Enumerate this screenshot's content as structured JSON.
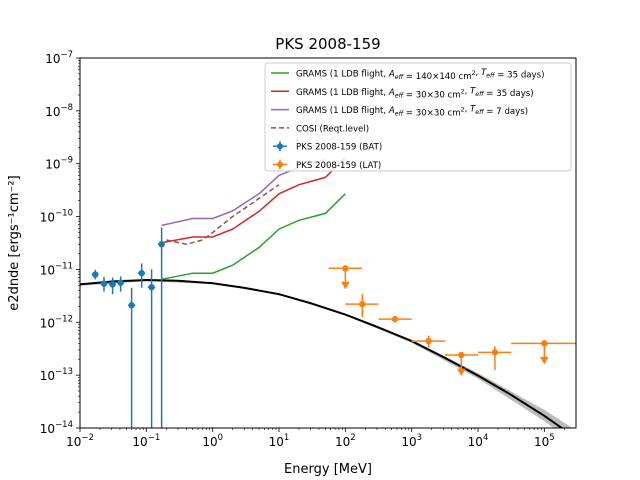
{
  "chart_data": {
    "type": "scatter",
    "title": "PKS 2008-159",
    "xlabel": "Energy [MeV]",
    "ylabel": "e2dnde [ergs⁻¹cm⁻²]",
    "xscale": "log",
    "yscale": "log",
    "xlim": [
      0.01,
      300000
    ],
    "ylim": [
      1e-14,
      1e-07
    ],
    "x_ticks": [
      {
        "v": 0.01,
        "base": "10",
        "exp": "−2"
      },
      {
        "v": 0.1,
        "base": "10",
        "exp": "−1"
      },
      {
        "v": 1,
        "base": "10",
        "exp": "0"
      },
      {
        "v": 10,
        "base": "10",
        "exp": "1"
      },
      {
        "v": 100,
        "base": "10",
        "exp": "2"
      },
      {
        "v": 1000,
        "base": "10",
        "exp": "3"
      },
      {
        "v": 10000,
        "base": "10",
        "exp": "4"
      },
      {
        "v": 100000,
        "base": "10",
        "exp": "5"
      }
    ],
    "y_ticks": [
      {
        "v": 1e-14,
        "base": "10",
        "exp": "−14"
      },
      {
        "v": 1e-13,
        "base": "10",
        "exp": "−13"
      },
      {
        "v": 1e-12,
        "base": "10",
        "exp": "−12"
      },
      {
        "v": 1e-11,
        "base": "10",
        "exp": "−11"
      },
      {
        "v": 1e-10,
        "base": "10",
        "exp": "−10"
      },
      {
        "v": 1e-09,
        "base": "10",
        "exp": "−9"
      },
      {
        "v": 1e-08,
        "base": "10",
        "exp": "−8"
      },
      {
        "v": 1e-07,
        "base": "10",
        "exp": "−7"
      }
    ],
    "grid": false,
    "legend_position": "top-right",
    "model": {
      "color": "#000000",
      "band_color": "#bbbbbb",
      "curve": [
        [
          0.01,
          5.2e-12
        ],
        [
          0.03,
          5.9e-12
        ],
        [
          0.1,
          6.3e-12
        ],
        [
          0.3,
          6.1e-12
        ],
        [
          1,
          5.5e-12
        ],
        [
          3,
          4.5e-12
        ],
        [
          10,
          3.4e-12
        ],
        [
          30,
          2.3e-12
        ],
        [
          100,
          1.4e-12
        ],
        [
          300,
          8.2e-13
        ],
        [
          1000,
          4.4e-13
        ],
        [
          3000,
          2.2e-13
        ],
        [
          10000,
          9.8e-14
        ],
        [
          30000,
          4.4e-14
        ],
        [
          100000,
          1.7e-14
        ],
        [
          300000,
          6.5e-15
        ]
      ],
      "band_upper": [
        [
          0.01,
          5.5e-12
        ],
        [
          0.1,
          6.6e-12
        ],
        [
          1,
          5.7e-12
        ],
        [
          10,
          3.5e-12
        ],
        [
          100,
          1.45e-12
        ],
        [
          1000,
          4.7e-13
        ],
        [
          10000,
          1.1e-13
        ],
        [
          100000,
          2.2e-14
        ],
        [
          300000,
          9e-15
        ]
      ],
      "band_lower": [
        [
          0.01,
          4.9e-12
        ],
        [
          0.1,
          6e-12
        ],
        [
          1,
          5.3e-12
        ],
        [
          10,
          3.3e-12
        ],
        [
          100,
          1.35e-12
        ],
        [
          1000,
          4.1e-13
        ],
        [
          10000,
          8.6e-14
        ],
        [
          100000,
          1.35e-14
        ],
        [
          300000,
          4.8e-15
        ]
      ]
    },
    "series": [
      {
        "name": "GRAMS (1 LDB flight, A_eff = 140×140 cm², T_eff = 35 days)",
        "legend_main": "GRAMS (1 LDB flight, ",
        "legend_parts": [
          {
            "t": "A"
          },
          {
            "t": "eff",
            "sub": true
          },
          {
            "t": " = 140×140 cm"
          },
          {
            "t": "2",
            "sup": true
          },
          {
            "t": ", "
          },
          {
            "t": "T"
          },
          {
            "t": "eff",
            "sub": true
          },
          {
            "t": " = 35 days)"
          }
        ],
        "style": "line",
        "color": "#2ca02c",
        "points": [
          [
            0.17,
            6.5e-12
          ],
          [
            0.5,
            8.5e-12
          ],
          [
            1,
            8.5e-12
          ],
          [
            2,
            1.2e-11
          ],
          [
            5,
            2.6e-11
          ],
          [
            10,
            5.8e-11
          ],
          [
            20,
            8.5e-11
          ],
          [
            50,
            1.15e-10
          ],
          [
            100,
            2.7e-10
          ]
        ]
      },
      {
        "name": "GRAMS (1 LDB flight, A_eff = 30×30 cm², T_eff = 35 days)",
        "legend_main": "GRAMS (1 LDB flight, ",
        "legend_parts": [
          {
            "t": "A"
          },
          {
            "t": "eff",
            "sub": true
          },
          {
            "t": " = 30×30 cm"
          },
          {
            "t": "2",
            "sup": true
          },
          {
            "t": ", "
          },
          {
            "t": "T"
          },
          {
            "t": "eff",
            "sub": true
          },
          {
            "t": " = 35 days)"
          }
        ],
        "style": "line",
        "color": "#d62728",
        "points": [
          [
            0.17,
            3.2e-11
          ],
          [
            0.5,
            4.1e-11
          ],
          [
            1,
            4.1e-11
          ],
          [
            2,
            5.8e-11
          ],
          [
            5,
            1.25e-10
          ],
          [
            10,
            2.7e-10
          ],
          [
            20,
            4e-10
          ],
          [
            50,
            5.5e-10
          ],
          [
            100,
            1.3e-09
          ]
        ]
      },
      {
        "name": "GRAMS (1 LDB flight, A_eff = 30×30 cm², T_eff = 7 days)",
        "legend_main": "GRAMS (1 LDB flight, ",
        "legend_parts": [
          {
            "t": "A"
          },
          {
            "t": "eff",
            "sub": true
          },
          {
            "t": " = 30×30 cm"
          },
          {
            "t": "2",
            "sup": true
          },
          {
            "t": ", "
          },
          {
            "t": "T"
          },
          {
            "t": "eff",
            "sub": true
          },
          {
            "t": " = 7 days)"
          }
        ],
        "style": "line",
        "color": "#9467bd",
        "points": [
          [
            0.17,
            6.8e-11
          ],
          [
            0.5,
            9.2e-11
          ],
          [
            1,
            9.2e-11
          ],
          [
            2,
            1.28e-10
          ],
          [
            5,
            2.7e-10
          ],
          [
            10,
            6e-10
          ],
          [
            20,
            8.5e-10
          ],
          [
            50,
            1.2e-09
          ]
        ]
      },
      {
        "name": "COSI (Reqt.level)",
        "legend_main": "COSI (Reqt.level)",
        "legend_parts": [],
        "style": "dashed",
        "color": "#8c564b",
        "points": [
          [
            0.2,
            3.6e-11
          ],
          [
            0.4,
            3e-11
          ],
          [
            0.7,
            3.6e-11
          ],
          [
            1,
            5e-11
          ],
          [
            2,
            1e-10
          ],
          [
            5,
            2.2e-10
          ],
          [
            10,
            4e-10
          ]
        ]
      },
      {
        "name": "PKS 2008-159 (BAT)",
        "legend_main": "PKS 2008-159 (BAT)",
        "legend_parts": [],
        "style": "errorbar",
        "color": "#1f77b4",
        "points": [
          {
            "x": 0.017,
            "xlo": 0.015,
            "xhi": 0.019,
            "y": 8e-12,
            "ylo": 6.5e-12,
            "yhi": 9.8e-12
          },
          {
            "x": 0.023,
            "xlo": 0.02,
            "xhi": 0.026,
            "y": 5.4e-12,
            "ylo": 3.8e-12,
            "yhi": 7.2e-12
          },
          {
            "x": 0.031,
            "xlo": 0.027,
            "xhi": 0.035,
            "y": 5.2e-12,
            "ylo": 3.4e-12,
            "yhi": 7e-12
          },
          {
            "x": 0.041,
            "xlo": 0.036,
            "xhi": 0.046,
            "y": 5.6e-12,
            "ylo": 3.8e-12,
            "yhi": 7.4e-12
          },
          {
            "x": 0.06,
            "xlo": 0.053,
            "xhi": 0.068,
            "y": 2.1e-12,
            "ylo": 1e-14,
            "yhi": 4.5e-12
          },
          {
            "x": 0.085,
            "xlo": 0.075,
            "xhi": 0.095,
            "y": 8.5e-12,
            "ylo": 4.5e-12,
            "yhi": 1.3e-11
          },
          {
            "x": 0.12,
            "xlo": 0.105,
            "xhi": 0.135,
            "y": 4.6e-12,
            "ylo": 1e-14,
            "yhi": 1e-11
          },
          {
            "x": 0.17,
            "xlo": 0.15,
            "xhi": 0.19,
            "y": 3e-11,
            "ylo": 1e-14,
            "yhi": 6.2e-11
          }
        ]
      },
      {
        "name": "PKS 2008-159 (LAT)",
        "legend_main": "PKS 2008-159 (LAT)",
        "legend_parts": [],
        "style": "errorbar",
        "color": "#ff7f0e",
        "points": [
          {
            "x": 100,
            "xlo": 56,
            "xhi": 178,
            "y": 1.05e-11,
            "ul": true
          },
          {
            "x": 180,
            "xlo": 100,
            "xhi": 316,
            "y": 2.2e-12,
            "ylo": 1.25e-12,
            "yhi": 3.4e-12
          },
          {
            "x": 560,
            "xlo": 316,
            "xhi": 1000,
            "y": 1.15e-12,
            "ylo": 1e-12,
            "yhi": 1.3e-12
          },
          {
            "x": 1800,
            "xlo": 1000,
            "xhi": 3160,
            "y": 4.4e-13,
            "ylo": 3.4e-13,
            "yhi": 5.6e-13
          },
          {
            "x": 5600,
            "xlo": 3160,
            "xhi": 10000,
            "y": 2.4e-13,
            "ul": true
          },
          {
            "x": 18000,
            "xlo": 10000,
            "xhi": 31600,
            "y": 2.7e-13,
            "ylo": 1.25e-13,
            "yhi": 3.5e-13
          },
          {
            "x": 100000,
            "xlo": 31600,
            "xhi": 300000,
            "y": 4e-13,
            "ul": true
          }
        ]
      }
    ]
  }
}
